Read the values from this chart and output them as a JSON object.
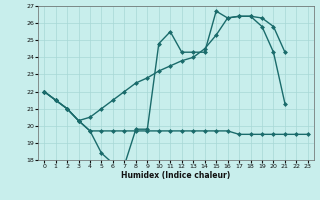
{
  "background_color": "#c8eeec",
  "grid_color": "#a8d8d6",
  "line_color": "#1a6b6b",
  "xlabel": "Humidex (Indice chaleur)",
  "xlim": [
    -0.5,
    23.5
  ],
  "ylim": [
    18,
    27
  ],
  "yticks": [
    18,
    19,
    20,
    21,
    22,
    23,
    24,
    25,
    26,
    27
  ],
  "xticks": [
    0,
    1,
    2,
    3,
    4,
    5,
    6,
    7,
    8,
    9,
    10,
    11,
    12,
    13,
    14,
    15,
    16,
    17,
    18,
    19,
    20,
    21,
    22,
    23
  ],
  "s1_x": [
    0,
    1,
    2,
    3,
    4,
    5,
    6,
    7,
    8,
    9,
    10,
    11,
    12,
    13,
    14,
    15,
    16,
    17,
    18,
    19,
    20,
    21
  ],
  "s1_y": [
    22.0,
    21.5,
    21.0,
    20.3,
    19.7,
    18.4,
    17.8,
    17.7,
    19.8,
    19.8,
    24.8,
    25.5,
    24.3,
    24.3,
    24.3,
    26.7,
    26.3,
    26.4,
    26.4,
    25.8,
    24.3,
    21.3
  ],
  "s2_x": [
    0,
    1,
    2,
    3,
    4,
    5,
    6,
    7,
    8,
    9,
    10,
    11,
    12,
    13,
    14,
    15,
    16,
    17,
    18,
    19,
    20,
    21
  ],
  "s2_y": [
    22.0,
    21.5,
    21.0,
    20.3,
    20.5,
    21.0,
    21.5,
    22.0,
    22.5,
    22.8,
    23.2,
    23.5,
    23.8,
    24.0,
    24.5,
    25.3,
    26.3,
    26.4,
    26.4,
    26.3,
    25.8,
    24.3
  ],
  "s3_x": [
    0,
    1,
    2,
    3,
    4,
    5,
    6,
    7,
    8,
    9,
    10,
    11,
    12,
    13,
    14,
    15,
    16,
    17,
    18,
    19,
    20,
    21,
    22,
    23
  ],
  "s3_y": [
    22.0,
    21.5,
    21.0,
    20.3,
    19.7,
    19.7,
    19.7,
    19.7,
    19.7,
    19.7,
    19.7,
    19.7,
    19.7,
    19.7,
    19.7,
    19.7,
    19.7,
    19.5,
    19.5,
    19.5,
    19.5,
    19.5,
    19.5,
    19.5
  ]
}
